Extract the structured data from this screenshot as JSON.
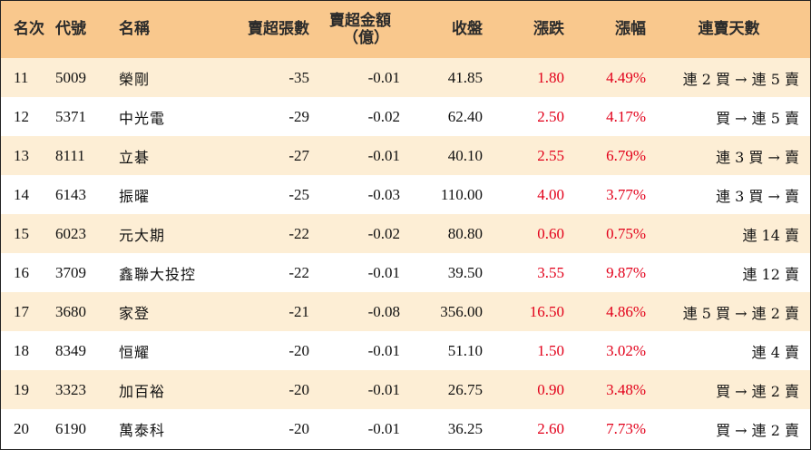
{
  "headers": {
    "rank": "名次",
    "code": "代號",
    "name": "名稱",
    "net_sell_lots": "賣超張數",
    "net_sell_amount_line1": "賣超金額",
    "net_sell_amount_line2": "（億）",
    "close": "收盤",
    "change": "漲跌",
    "change_pct": "漲幅",
    "streak": "連賣天數"
  },
  "rows": [
    {
      "rank": "11",
      "code": "5009",
      "name": "榮剛",
      "lots": "-35",
      "amount": "-0.01",
      "close": "41.85",
      "change": "1.80",
      "pct": "4.49%",
      "streak": "連 2 買 → 連 5 賣"
    },
    {
      "rank": "12",
      "code": "5371",
      "name": "中光電",
      "lots": "-29",
      "amount": "-0.02",
      "close": "62.40",
      "change": "2.50",
      "pct": "4.17%",
      "streak": "買 → 連 5 賣"
    },
    {
      "rank": "13",
      "code": "8111",
      "name": "立碁",
      "lots": "-27",
      "amount": "-0.01",
      "close": "40.10",
      "change": "2.55",
      "pct": "6.79%",
      "streak": "連 3 買 → 賣"
    },
    {
      "rank": "14",
      "code": "6143",
      "name": "振曜",
      "lots": "-25",
      "amount": "-0.03",
      "close": "110.00",
      "change": "4.00",
      "pct": "3.77%",
      "streak": "連 3 買 → 賣"
    },
    {
      "rank": "15",
      "code": "6023",
      "name": "元大期",
      "lots": "-22",
      "amount": "-0.02",
      "close": "80.80",
      "change": "0.60",
      "pct": "0.75%",
      "streak": "連 14 賣"
    },
    {
      "rank": "16",
      "code": "3709",
      "name": "鑫聯大投控",
      "lots": "-22",
      "amount": "-0.01",
      "close": "39.50",
      "change": "3.55",
      "pct": "9.87%",
      "streak": "連 12 賣"
    },
    {
      "rank": "17",
      "code": "3680",
      "name": "家登",
      "lots": "-21",
      "amount": "-0.08",
      "close": "356.00",
      "change": "16.50",
      "pct": "4.86%",
      "streak": "連 5 買 → 連 2 賣"
    },
    {
      "rank": "18",
      "code": "8349",
      "name": "恒耀",
      "lots": "-20",
      "amount": "-0.01",
      "close": "51.10",
      "change": "1.50",
      "pct": "3.02%",
      "streak": "連 4 賣"
    },
    {
      "rank": "19",
      "code": "3323",
      "name": "加百裕",
      "lots": "-20",
      "amount": "-0.01",
      "close": "26.75",
      "change": "0.90",
      "pct": "3.48%",
      "streak": "買 → 連 2 賣"
    },
    {
      "rank": "20",
      "code": "6190",
      "name": "萬泰科",
      "lots": "-20",
      "amount": "-0.01",
      "close": "36.25",
      "change": "2.60",
      "pct": "7.73%",
      "streak": "買 → 連 2 賣"
    }
  ],
  "colors": {
    "header_bg": "#f9c88d",
    "stripe_bg": "#fdeed5",
    "up_red": "#e2001a"
  }
}
